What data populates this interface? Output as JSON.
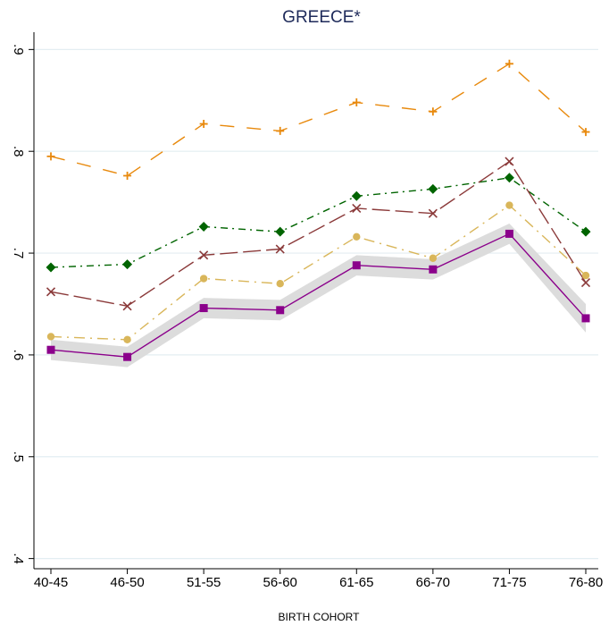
{
  "chart_data": {
    "type": "line",
    "title": "GREECE*",
    "xlabel": "BIRTH COHORT",
    "categories": [
      "40-45",
      "46-50",
      "51-55",
      "56-60",
      "61-65",
      "66-70",
      "71-75",
      "76-80"
    ],
    "ylim": [
      0.39,
      0.917
    ],
    "yticks": [
      {
        "value": 0.4,
        "label": ".4"
      },
      {
        "value": 0.5,
        "label": ".5"
      },
      {
        "value": 0.6,
        "label": ".6"
      },
      {
        "value": 0.7,
        "label": ".7"
      },
      {
        "value": 0.8,
        "label": ".8"
      },
      {
        "value": 0.9,
        "label": ".9"
      }
    ],
    "grid": true,
    "series": [
      {
        "color": "#e8890c",
        "marker": "plus",
        "values": [
          0.795,
          0.776,
          0.827,
          0.82,
          0.848,
          0.839,
          0.886,
          0.819
        ]
      },
      {
        "color": "#006400",
        "marker": "diamond",
        "values": [
          0.686,
          0.689,
          0.726,
          0.721,
          0.756,
          0.763,
          0.774,
          0.721
        ]
      },
      {
        "color": "#8b3a3a",
        "marker": "x",
        "values": [
          0.662,
          0.648,
          0.698,
          0.704,
          0.744,
          0.739,
          0.79,
          0.671
        ]
      },
      {
        "color": "#d9b65a",
        "marker": "circle",
        "values": [
          0.618,
          0.615,
          0.675,
          0.67,
          0.716,
          0.695,
          0.747,
          0.678
        ]
      },
      {
        "color": "#8b008b",
        "marker": "square",
        "values": [
          0.605,
          0.598,
          0.646,
          0.644,
          0.688,
          0.684,
          0.719,
          0.636
        ],
        "band_color": "#dcdcdc",
        "lower": [
          0.595,
          0.588,
          0.636,
          0.634,
          0.678,
          0.674,
          0.709,
          0.622
        ],
        "upper": [
          0.615,
          0.608,
          0.656,
          0.654,
          0.698,
          0.694,
          0.729,
          0.65
        ]
      }
    ]
  }
}
